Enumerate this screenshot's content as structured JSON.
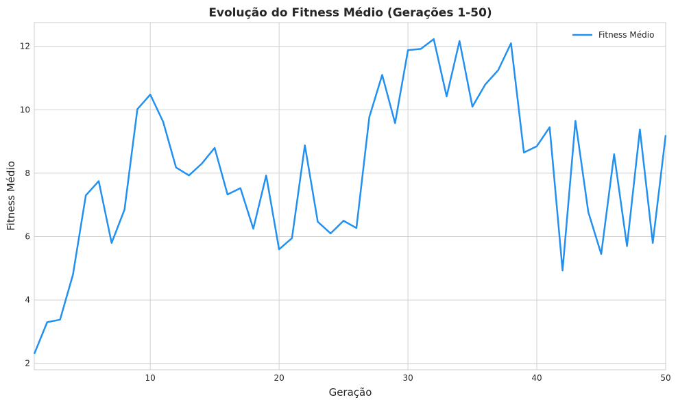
{
  "chart_data": {
    "type": "line",
    "title": "Evolução do Fitness Médio (Gerações 1-50)",
    "xlabel": "Geração",
    "ylabel": "Fitness Médio",
    "xlim": [
      1,
      50
    ],
    "ylim": [
      1.8,
      12.75
    ],
    "xticks": [
      10,
      20,
      30,
      40,
      50
    ],
    "yticks": [
      2,
      4,
      6,
      8,
      10,
      12
    ],
    "grid": true,
    "legend_position": "top-right",
    "color": "#2290f0",
    "series": [
      {
        "name": "Fitness Médio",
        "x": [
          1,
          2,
          3,
          4,
          5,
          6,
          7,
          8,
          9,
          10,
          11,
          12,
          13,
          14,
          15,
          16,
          17,
          18,
          19,
          20,
          21,
          22,
          23,
          24,
          25,
          26,
          27,
          28,
          29,
          30,
          31,
          32,
          33,
          34,
          35,
          36,
          37,
          38,
          39,
          40,
          41,
          42,
          43,
          44,
          45,
          46,
          47,
          48,
          49,
          50
        ],
        "y": [
          2.3,
          3.3,
          3.38,
          4.8,
          7.3,
          7.75,
          5.8,
          6.85,
          10.02,
          10.48,
          9.62,
          8.18,
          7.93,
          8.3,
          8.8,
          7.33,
          7.53,
          6.25,
          7.93,
          5.6,
          5.95,
          8.88,
          6.47,
          6.1,
          6.5,
          6.27,
          9.77,
          11.1,
          9.58,
          11.88,
          11.92,
          12.23,
          10.42,
          12.17,
          10.1,
          10.8,
          11.25,
          12.1,
          8.65,
          8.85,
          9.45,
          4.93,
          9.65,
          6.77,
          5.45,
          8.6,
          5.7,
          9.38,
          5.8,
          9.2
        ]
      }
    ]
  }
}
